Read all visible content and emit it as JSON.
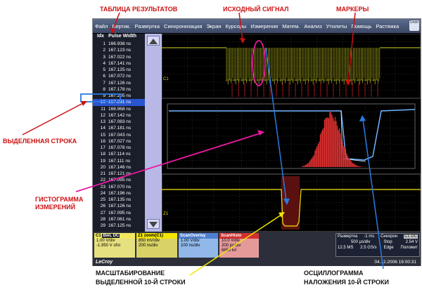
{
  "annotations": {
    "results_table": "ТАБЛИЦА РЕЗУЛЬТАТОВ",
    "source_signal": "ИСХОДНЫЙ СИГНАЛ",
    "markers": "МАРКЕРЫ",
    "selected_row": "ВЫДЕЛЕННАЯ СТРОКА",
    "histogram_line1": "ГИСТОГРАММА",
    "histogram_line2": "ИЗМЕРЕНИЙ",
    "zoom_line1": "МАСШТАБИРОВАНИЕ",
    "zoom_line2": "ВЫДЕЛЕННОЙ 10-Й СТРОКИ",
    "overlay_line1": "ОСЦИЛЛОГРАММА",
    "overlay_line2": "НАЛОЖЕНИЯ 10-Й СТРОКИ"
  },
  "menu": [
    "Файл",
    "Вертик.",
    "Развертка",
    "Синхронизация",
    "Экран",
    "Курсоры",
    "Измерения",
    "Матем.",
    "Анализ",
    "Утилиты",
    "Помощь",
    "Растяжка"
  ],
  "undo_label": "Undo",
  "table": {
    "headers": [
      "Idx",
      "Pulse Width"
    ],
    "selected_index": 9,
    "rows": [
      [
        "1",
        "166.938 ns"
      ],
      [
        "2",
        "167.123 ns"
      ],
      [
        "3",
        "167.022 ns"
      ],
      [
        "4",
        "167.141 ns"
      ],
      [
        "5",
        "167.125 ns"
      ],
      [
        "6",
        "167.072 ns"
      ],
      [
        "7",
        "167.126 ns"
      ],
      [
        "8",
        "167.178 ns"
      ],
      [
        "9",
        "167.205 ns"
      ],
      [
        "10",
        "167.231 ns"
      ],
      [
        "11",
        "166.968 ns"
      ],
      [
        "12",
        "167.142 ns"
      ],
      [
        "13",
        "167.083 ns"
      ],
      [
        "14",
        "167.181 ns"
      ],
      [
        "15",
        "167.043 ns"
      ],
      [
        "16",
        "167.027 ns"
      ],
      [
        "17",
        "167.078 ns"
      ],
      [
        "18",
        "167.114 ns"
      ],
      [
        "19",
        "167.111 ns"
      ],
      [
        "20",
        "167.146 ns"
      ],
      [
        "21",
        "167.121 ns"
      ],
      [
        "22",
        "167.095 ns"
      ],
      [
        "23",
        "167.070 ns"
      ],
      [
        "24",
        "167.196 ns"
      ],
      [
        "25",
        "167.135 ns"
      ],
      [
        "26",
        "167.126 ns"
      ],
      [
        "27",
        "167.095 ns"
      ],
      [
        "28",
        "167.061 ns"
      ],
      [
        "29",
        "167.125 ns"
      ]
    ]
  },
  "panel_labels": {
    "c1": "C1",
    "z1": "Z1"
  },
  "status": {
    "c1": {
      "title": "C1",
      "badge": "BwL DC",
      "l1": "1.00 V/div",
      "l2": "-1.950 V ofst"
    },
    "zoom": {
      "title": "Z1",
      "badge": "zoom(C1)",
      "l1": "850 mV/div",
      "l2": "200 ns/div"
    },
    "overlay": {
      "title": "ScanOverlay",
      "l1": "1.00 V/div",
      "l2": "100 ns/div"
    },
    "histo": {
      "title": "ScanHisto",
      "l1": "10.0 #/div",
      "l2": "200 ps/div",
      "l3": "6650 k#"
    },
    "timebase": {
      "label": "Развертка",
      "offset": "-1 ms",
      "sync": "Синхрон",
      "sync_badge": "C1 DC",
      "r2a": "500 µs/div",
      "r2b": "Stop",
      "r2c": "2.54 V",
      "r3a": "12.5 MS",
      "r3b": "2.5 GS/s",
      "r3c": "Edge",
      "r3d": "Положит"
    },
    "brand": "LeCroy",
    "datetime": "04.12.2006 19:00:31"
  },
  "colors": {
    "ch1": "#d8d820",
    "overlay": "#6fb5ff",
    "histogram": "#e03030",
    "zoom": "#f2e600",
    "highlight": "#2a55d0"
  }
}
